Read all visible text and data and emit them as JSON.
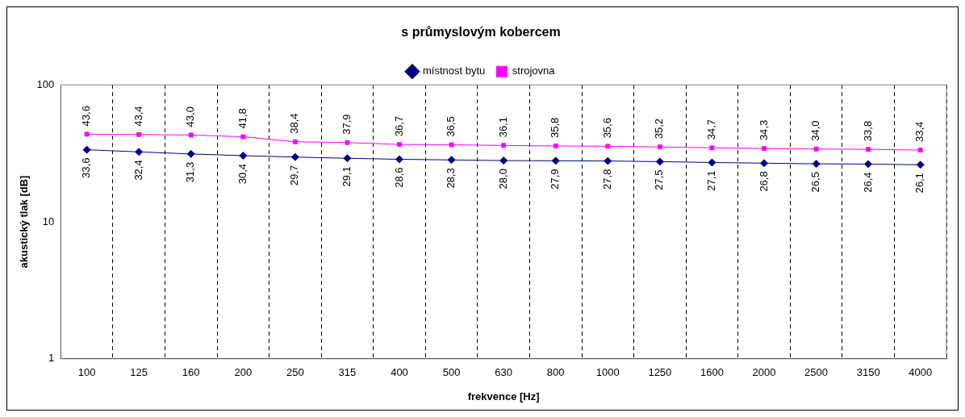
{
  "chart_data": {
    "type": "line",
    "title": "s průmyslovým kobercem",
    "xlabel": "frekvence [Hz]",
    "ylabel": "akustický tlak [dB]",
    "categories": [
      "100",
      "125",
      "160",
      "200",
      "250",
      "315",
      "400",
      "500",
      "630",
      "800",
      "1000",
      "1250",
      "1600",
      "2000",
      "2500",
      "3150",
      "4000"
    ],
    "series": [
      {
        "name": "místnost bytu",
        "color": "#000080",
        "marker": "diamond",
        "values": [
          33.6,
          32.4,
          31.3,
          30.4,
          29.7,
          29.1,
          28.6,
          28.3,
          28.0,
          27.9,
          27.8,
          27.5,
          27.1,
          26.8,
          26.5,
          26.4,
          26.1
        ],
        "value_labels": [
          "33,6",
          "32,4",
          "31,3",
          "30,4",
          "29,7",
          "29,1",
          "28,6",
          "28,3",
          "28,0",
          "27,9",
          "27,8",
          "27,5",
          "27,1",
          "26,8",
          "26,5",
          "26,4",
          "26,1"
        ]
      },
      {
        "name": "strojovna",
        "color": "#ff00ff",
        "marker": "square",
        "values": [
          43.6,
          43.4,
          43.0,
          41.8,
          38.4,
          37.9,
          36.7,
          36.5,
          36.1,
          35.8,
          35.6,
          35.2,
          34.7,
          34.3,
          34.0,
          33.8,
          33.4
        ],
        "value_labels": [
          "43,6",
          "43,4",
          "43,0",
          "41,8",
          "38,4",
          "37,9",
          "36,7",
          "36,5",
          "36,1",
          "35,8",
          "35,6",
          "35,2",
          "34,7",
          "34,3",
          "34,0",
          "33,8",
          "33,4"
        ]
      }
    ],
    "log": "y",
    "ylim": [
      1,
      100
    ],
    "yticks": [
      1,
      10,
      100
    ],
    "grid": "x",
    "legend": "top",
    "line_style": "solid"
  }
}
